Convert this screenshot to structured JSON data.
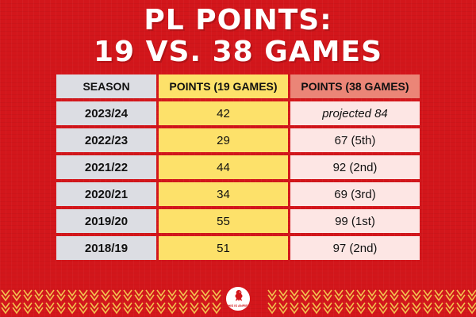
{
  "title": {
    "line1": "PL POINTS:",
    "line2": "19 VS. 38 GAMES"
  },
  "table": {
    "headers": [
      "SEASON",
      "POINTS (19 GAMES)",
      "POINTS (38 GAMES)"
    ],
    "rows": [
      [
        "2023/24",
        "42",
        "projected 84"
      ],
      [
        "2022/23",
        "29",
        "67 (5th)"
      ],
      [
        "2021/22",
        "44",
        "92 (2nd)"
      ],
      [
        "2020/21",
        "34",
        "69 (3rd)"
      ],
      [
        "2019/20",
        "55",
        "99 (1st)"
      ],
      [
        "2018/19",
        "51",
        "97 (2nd)"
      ]
    ]
  },
  "logo": {
    "icon": "liverbird-icon",
    "text": "THIS IS ANFIELD"
  },
  "colors": {
    "background": "#d3161b",
    "season_column": "#dcdde3",
    "points19_column": "#fde16a",
    "points38_header": "#eb8577",
    "points38_column": "#fde6e4",
    "chevrons": "#f2c14e"
  }
}
